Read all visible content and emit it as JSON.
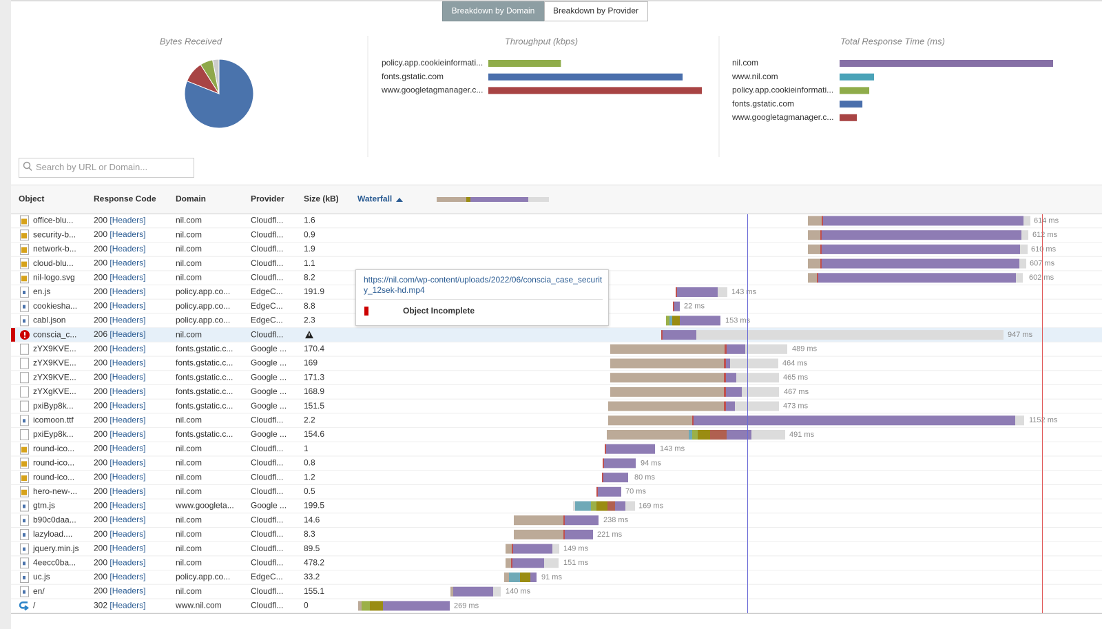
{
  "tabs": [
    "Breakdown by Domain",
    "Breakdown by Provider"
  ],
  "bytes_received": {
    "type": "pie",
    "title": "Bytes Received",
    "values": [
      81,
      10,
      6,
      3
    ],
    "colors": [
      "#4a73ac",
      "#a84444",
      "#8fa84a",
      "#cccccc"
    ]
  },
  "throughput": {
    "type": "bar",
    "title": "Throughput (kbps)",
    "categories": [
      "policy.app.cookieinformati...",
      "fonts.gstatic.com",
      "www.googletagmanager.c..."
    ],
    "values": [
      34,
      91,
      100
    ],
    "colors": [
      "#8fac4a",
      "#4a6fac",
      "#a84444"
    ]
  },
  "response_time": {
    "type": "bar",
    "title": "Total Response Time (ms)",
    "categories": [
      "nil.com",
      "www.nil.com",
      "policy.app.cookieinformati...",
      "fonts.gstatic.com",
      "www.googletagmanager.c..."
    ],
    "values": [
      1152,
      186,
      160,
      123,
      93
    ],
    "colors": [
      "#8670a6",
      "#4aa3b8",
      "#8fac4a",
      "#4a6fac",
      "#a84444"
    ]
  },
  "search_placeholder": "Search by URL or Domain...",
  "table": {
    "columns": [
      "Object",
      "Response Code",
      "Domain",
      "Provider",
      "Size (kB)",
      "Waterfall"
    ],
    "rows": [
      {
        "object": "office-blu...",
        "code": "200",
        "link": "[Headers]",
        "domain": "nil.com",
        "provider": "Cloudfl...",
        "size": 1.6,
        "time": "614 ms"
      },
      {
        "object": "security-b...",
        "code": "200",
        "link": "[Headers]",
        "domain": "nil.com",
        "provider": "Cloudfl...",
        "size": 0.9,
        "time": "612 ms"
      },
      {
        "object": "network-b...",
        "code": "200",
        "link": "[Headers]",
        "domain": "nil.com",
        "provider": "Cloudfl...",
        "size": 1.9,
        "time": "610 ms"
      },
      {
        "object": "cloud-blu...",
        "code": "200",
        "link": "[Headers]",
        "domain": "nil.com",
        "provider": "Cloudfl...",
        "size": 1.1,
        "time": "607 ms"
      },
      {
        "object": "nil-logo.svg",
        "code": "200",
        "link": "[Headers]",
        "domain": "nil.com",
        "provider": "Cloudfl...",
        "size": 8.2,
        "time": "602 ms"
      },
      {
        "object": "en.js",
        "code": "200",
        "link": "[Headers]",
        "domain": "policy.app.co...",
        "provider": "EdgeC...",
        "size": 191.9,
        "time": "143 ms"
      },
      {
        "object": "cookiesha...",
        "code": "200",
        "link": "[Headers]",
        "domain": "policy.app.co...",
        "provider": "EdgeC...",
        "size": 8.8,
        "time": "22 ms"
      },
      {
        "object": "cabl.json",
        "code": "200",
        "link": "[Headers]",
        "domain": "policy.app.co...",
        "provider": "EdgeC...",
        "size": 2.3,
        "time": "153 ms"
      },
      {
        "object": "conscia_c...",
        "code": "206",
        "link": "[Headers]",
        "domain": "nil.com",
        "provider": "Cloudfl...",
        "time": "947 ms"
      },
      {
        "object": "zYX9KVE...",
        "code": "200",
        "link": "[Headers]",
        "domain": "fonts.gstatic.c...",
        "provider": "Google ...",
        "size": 170.4,
        "time": "489 ms"
      },
      {
        "object": "zYX9KVE...",
        "code": "200",
        "link": "[Headers]",
        "domain": "fonts.gstatic.c...",
        "provider": "Google ...",
        "size": 169,
        "time": "464 ms"
      },
      {
        "object": "zYX9KVE...",
        "code": "200",
        "link": "[Headers]",
        "domain": "fonts.gstatic.c...",
        "provider": "Google ...",
        "size": 171.3,
        "time": "465 ms"
      },
      {
        "object": "zYXgKVE...",
        "code": "200",
        "link": "[Headers]",
        "domain": "fonts.gstatic.c...",
        "provider": "Google ...",
        "size": 168.9,
        "time": "467 ms"
      },
      {
        "object": "pxiByp8k...",
        "code": "200",
        "link": "[Headers]",
        "domain": "fonts.gstatic.c...",
        "provider": "Google ...",
        "size": 151.5,
        "time": "473 ms"
      },
      {
        "object": "icomoon.ttf",
        "code": "200",
        "link": "[Headers]",
        "domain": "nil.com",
        "provider": "Cloudfl...",
        "size": 2.2,
        "time": "1152 ms"
      },
      {
        "object": "pxiEyp8k...",
        "code": "200",
        "link": "[Headers]",
        "domain": "fonts.gstatic.c...",
        "provider": "Google ...",
        "size": 154.6,
        "time": "491 ms"
      },
      {
        "object": "round-ico...",
        "code": "200",
        "link": "[Headers]",
        "domain": "nil.com",
        "provider": "Cloudfl...",
        "size": 1,
        "time": "143 ms"
      },
      {
        "object": "round-ico...",
        "code": "200",
        "link": "[Headers]",
        "domain": "nil.com",
        "provider": "Cloudfl...",
        "size": 0.8,
        "time": "94 ms"
      },
      {
        "object": "round-ico...",
        "code": "200",
        "link": "[Headers]",
        "domain": "nil.com",
        "provider": "Cloudfl...",
        "size": 1.2,
        "time": "80 ms"
      },
      {
        "object": "hero-new-...",
        "code": "200",
        "link": "[Headers]",
        "domain": "nil.com",
        "provider": "Cloudfl...",
        "size": 0.5,
        "time": "70 ms"
      },
      {
        "object": "gtm.js",
        "code": "200",
        "link": "[Headers]",
        "domain": "www.googleta...",
        "provider": "Google ...",
        "size": 199.5,
        "time": "169 ms"
      },
      {
        "object": "b90c0daa...",
        "code": "200",
        "link": "[Headers]",
        "domain": "nil.com",
        "provider": "Cloudfl...",
        "size": 14.6,
        "time": "238 ms"
      },
      {
        "object": "lazyload....",
        "code": "200",
        "link": "[Headers]",
        "domain": "nil.com",
        "provider": "Cloudfl...",
        "size": 8.3,
        "time": "221 ms"
      },
      {
        "object": "jquery.min.js",
        "code": "200",
        "link": "[Headers]",
        "domain": "nil.com",
        "provider": "Cloudfl...",
        "size": 89.5,
        "time": "149 ms"
      },
      {
        "object": "4eecc0ba...",
        "code": "200",
        "link": "[Headers]",
        "domain": "nil.com",
        "provider": "Cloudfl...",
        "size": 478.2,
        "time": "151 ms"
      },
      {
        "object": "uc.js",
        "code": "200",
        "link": "[Headers]",
        "domain": "policy.app.co...",
        "provider": "EdgeC...",
        "size": 33.2,
        "time": "91 ms"
      },
      {
        "object": "en/",
        "code": "200",
        "link": "[Headers]",
        "domain": "nil.com",
        "provider": "Cloudfl...",
        "size": 155.1,
        "time": "140 ms"
      },
      {
        "object": "/",
        "code": "302",
        "link": "[Headers]",
        "domain": "www.nil.com",
        "provider": "Cloudfl...",
        "size": 0,
        "time": "269 ms"
      }
    ]
  },
  "tooltip": {
    "url": "https://nil.com/wp-content/uploads/2022/06/conscia_case_security_12sek-hd.mp4",
    "status": "Object Incomplete"
  }
}
